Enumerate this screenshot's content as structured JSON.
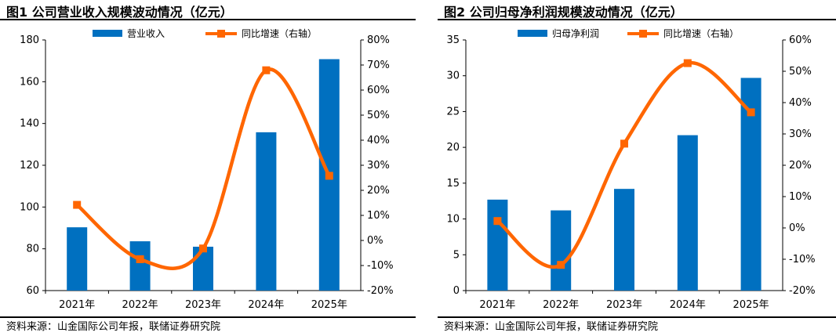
{
  "charts": [
    {
      "title": "图1  公司营业收入规模波动情况（亿元）",
      "source": "资料来源：山金国际公司年报，联储证券研究院",
      "chart_data": {
        "type": "bar",
        "categories": [
          "2021年",
          "2022年",
          "2023年",
          "2024年",
          "2025年"
        ],
        "series": [
          {
            "name": "营业收入",
            "type": "bar",
            "axis": "left",
            "values": [
              90.3,
              83.6,
              81.0,
              135.8,
              170.8
            ]
          },
          {
            "name": "同比增速（右轴）",
            "type": "line",
            "axis": "right",
            "values": [
              14.2,
              -7.5,
              -3.2,
              67.9,
              25.8
            ]
          }
        ],
        "y_left": {
          "min": 60,
          "max": 180,
          "step": 20,
          "ticks": [
            "60",
            "80",
            "100",
            "120",
            "140",
            "160",
            "180"
          ]
        },
        "y_right": {
          "min": -20,
          "max": 80,
          "step": 10,
          "ticks": [
            "-20%",
            "-10%",
            "0%",
            "10%",
            "20%",
            "30%",
            "40%",
            "50%",
            "60%",
            "70%",
            "80%"
          ]
        },
        "legend": "top",
        "colors": {
          "bar": "#0070C0",
          "line": "#FF6600"
        }
      }
    },
    {
      "title": "图2  公司归母净利润规模波动情况（亿元）",
      "source": "资料来源：山金国际公司年报，联储证券研究院",
      "chart_data": {
        "type": "bar",
        "categories": [
          "2021年",
          "2022年",
          "2023年",
          "2024年",
          "2025年"
        ],
        "series": [
          {
            "name": "归母净利润",
            "type": "bar",
            "axis": "left",
            "values": [
              12.7,
              11.2,
              14.2,
              21.7,
              29.7
            ]
          },
          {
            "name": "同比增速（右轴）",
            "type": "line",
            "axis": "right",
            "values": [
              2.2,
              -11.8,
              26.9,
              52.6,
              36.9
            ]
          }
        ],
        "y_left": {
          "min": 0,
          "max": 35,
          "step": 5,
          "ticks": [
            "0",
            "5",
            "10",
            "15",
            "20",
            "25",
            "30",
            "35"
          ]
        },
        "y_right": {
          "min": -20,
          "max": 60,
          "step": 10,
          "ticks": [
            "-20%",
            "-10%",
            "0%",
            "10%",
            "20%",
            "30%",
            "40%",
            "50%",
            "60%"
          ]
        },
        "legend": "top",
        "colors": {
          "bar": "#0070C0",
          "line": "#FF6600"
        }
      }
    }
  ]
}
